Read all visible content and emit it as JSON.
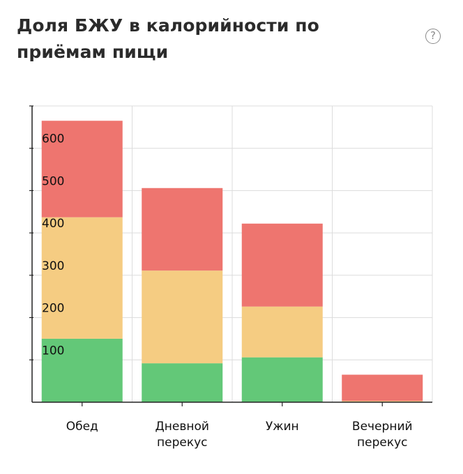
{
  "header": {
    "title": "Доля БЖУ в калорийности по приёмам пищи",
    "help_symbol": "?"
  },
  "chart_data": {
    "type": "bar",
    "stacked": true,
    "title": "Доля БЖУ в калорийности по приёмам пищи",
    "categories": [
      "Обед",
      "Дневной\nперекус",
      "Ужин",
      "Вечерний\nперекус"
    ],
    "series": [
      {
        "color": "#63c878",
        "values": [
          150,
          92,
          106,
          0
        ]
      },
      {
        "color": "#f5cc82",
        "values": [
          287,
          219,
          120,
          3
        ]
      },
      {
        "color": "#ee756f",
        "values": [
          228,
          195,
          196,
          62
        ]
      }
    ],
    "ylim": [
      0,
      700
    ],
    "yticks": [
      100,
      200,
      300,
      400,
      500,
      600
    ],
    "grid": true,
    "legend": "none"
  }
}
